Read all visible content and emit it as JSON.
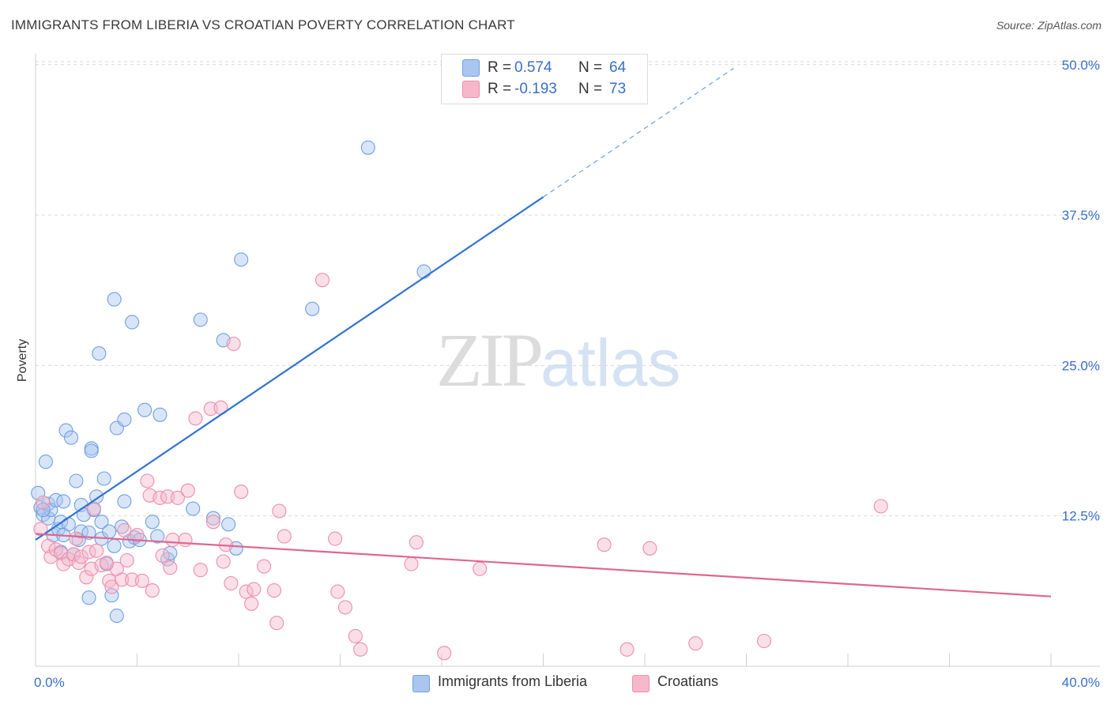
{
  "title": "IMMIGRANTS FROM LIBERIA VS CROATIAN POVERTY CORRELATION CHART",
  "source": "Source: ZipAtlas.com",
  "watermark": {
    "zip": "ZIP",
    "atlas": "atlas"
  },
  "stats": [
    {
      "r_label": "R =",
      "r_value": "0.574",
      "n_label": "N =",
      "n_value": "64",
      "color": "#a9c6f0"
    },
    {
      "r_label": "R =",
      "r_value": "-0.193",
      "n_label": "N =",
      "n_value": "73",
      "color": "#f5b8cb"
    }
  ],
  "legend": [
    {
      "label": "Immigrants from Liberia",
      "color": "#a9c6f0"
    },
    {
      "label": "Croatians",
      "color": "#f5b8cb"
    }
  ],
  "chart_data": {
    "type": "scatter",
    "title": "IMMIGRANTS FROM LIBERIA VS CROATIAN POVERTY CORRELATION CHART",
    "xlabel": "",
    "ylabel": "Poverty",
    "xlim": [
      0,
      40
    ],
    "ylim": [
      0,
      52
    ],
    "x_tick_labels": [
      "0.0%",
      "40.0%"
    ],
    "y_ticks": [
      12.5,
      25.0,
      37.5,
      50.0
    ],
    "y_tick_labels": [
      "12.5%",
      "25.0%",
      "37.5%",
      "50.0%"
    ],
    "grid": true,
    "legend_position": "bottom",
    "series": [
      {
        "name": "Immigrants from Liberia",
        "color": "#6fa0e0",
        "fill": "#a9c6f0",
        "trend_color": "#2f73d0",
        "trend": {
          "x0": 0,
          "y0": 10.5,
          "x1": 20,
          "y1": 39.0,
          "dash_to_x": 27.5,
          "dash_to_y": 49.7
        },
        "points": [
          [
            0.1,
            14.4
          ],
          [
            0.2,
            13.2
          ],
          [
            0.3,
            12.6
          ],
          [
            0.4,
            17.0
          ],
          [
            0.5,
            13.5
          ],
          [
            0.5,
            12.3
          ],
          [
            0.6,
            13.0
          ],
          [
            0.7,
            10.9
          ],
          [
            0.8,
            13.8
          ],
          [
            0.9,
            11.4
          ],
          [
            1.0,
            9.5
          ],
          [
            1.0,
            12.0
          ],
          [
            1.1,
            13.7
          ],
          [
            1.2,
            19.6
          ],
          [
            1.3,
            11.8
          ],
          [
            1.4,
            19.0
          ],
          [
            1.5,
            9.3
          ],
          [
            1.6,
            15.4
          ],
          [
            1.7,
            10.5
          ],
          [
            1.8,
            13.4
          ],
          [
            1.8,
            11.2
          ],
          [
            1.9,
            12.6
          ],
          [
            2.1,
            11.1
          ],
          [
            2.1,
            5.7
          ],
          [
            2.2,
            18.1
          ],
          [
            2.2,
            17.9
          ],
          [
            2.3,
            13.0
          ],
          [
            2.4,
            14.1
          ],
          [
            2.5,
            26.0
          ],
          [
            2.6,
            12.0
          ],
          [
            2.6,
            10.6
          ],
          [
            2.7,
            15.6
          ],
          [
            2.8,
            8.5
          ],
          [
            2.9,
            11.2
          ],
          [
            3.0,
            5.9
          ],
          [
            3.1,
            10.0
          ],
          [
            3.1,
            30.5
          ],
          [
            3.2,
            4.2
          ],
          [
            3.2,
            19.8
          ],
          [
            3.4,
            11.6
          ],
          [
            3.5,
            20.5
          ],
          [
            3.5,
            13.7
          ],
          [
            3.7,
            10.4
          ],
          [
            3.8,
            28.6
          ],
          [
            3.9,
            10.7
          ],
          [
            4.1,
            10.5
          ],
          [
            4.3,
            21.3
          ],
          [
            4.6,
            12.0
          ],
          [
            4.8,
            10.8
          ],
          [
            4.9,
            20.9
          ],
          [
            5.2,
            8.9
          ],
          [
            5.3,
            9.4
          ],
          [
            6.2,
            13.1
          ],
          [
            6.5,
            28.8
          ],
          [
            7.0,
            12.3
          ],
          [
            7.4,
            27.1
          ],
          [
            7.6,
            11.8
          ],
          [
            7.9,
            9.8
          ],
          [
            8.1,
            33.8
          ],
          [
            10.9,
            29.7
          ],
          [
            13.1,
            43.1
          ],
          [
            15.3,
            32.8
          ],
          [
            0.3,
            13.0
          ],
          [
            1.1,
            10.9
          ]
        ]
      },
      {
        "name": "Croatians",
        "color": "#ee8eac",
        "fill": "#f5b8cb",
        "trend_color": "#e0668e",
        "trend": {
          "x0": 0,
          "y0": 11.0,
          "x1": 40,
          "y1": 5.8
        },
        "points": [
          [
            0.2,
            11.4
          ],
          [
            0.3,
            13.6
          ],
          [
            0.5,
            10.0
          ],
          [
            0.6,
            9.1
          ],
          [
            0.8,
            9.7
          ],
          [
            1.0,
            9.4
          ],
          [
            1.1,
            8.5
          ],
          [
            1.3,
            8.9
          ],
          [
            1.5,
            9.3
          ],
          [
            1.6,
            10.6
          ],
          [
            1.7,
            8.6
          ],
          [
            1.8,
            9.1
          ],
          [
            2.0,
            7.4
          ],
          [
            2.1,
            9.5
          ],
          [
            2.2,
            8.1
          ],
          [
            2.3,
            13.1
          ],
          [
            2.4,
            9.6
          ],
          [
            2.6,
            8.4
          ],
          [
            2.8,
            8.6
          ],
          [
            2.9,
            7.1
          ],
          [
            3.0,
            6.6
          ],
          [
            3.2,
            8.1
          ],
          [
            3.4,
            7.2
          ],
          [
            3.5,
            11.3
          ],
          [
            3.6,
            8.8
          ],
          [
            3.8,
            7.2
          ],
          [
            4.0,
            10.9
          ],
          [
            4.2,
            7.1
          ],
          [
            4.4,
            15.4
          ],
          [
            4.5,
            14.2
          ],
          [
            4.6,
            6.3
          ],
          [
            4.9,
            14.0
          ],
          [
            5.0,
            9.2
          ],
          [
            5.2,
            14.1
          ],
          [
            5.3,
            8.2
          ],
          [
            5.4,
            10.5
          ],
          [
            5.6,
            14.0
          ],
          [
            5.9,
            10.5
          ],
          [
            6.0,
            14.6
          ],
          [
            6.3,
            20.6
          ],
          [
            6.5,
            8.0
          ],
          [
            6.9,
            21.4
          ],
          [
            7.0,
            12.0
          ],
          [
            7.3,
            21.5
          ],
          [
            7.4,
            8.7
          ],
          [
            7.5,
            10.1
          ],
          [
            7.7,
            6.9
          ],
          [
            7.8,
            26.8
          ],
          [
            8.1,
            14.5
          ],
          [
            8.3,
            6.2
          ],
          [
            8.5,
            5.2
          ],
          [
            8.6,
            6.4
          ],
          [
            9.0,
            8.3
          ],
          [
            9.4,
            6.3
          ],
          [
            9.5,
            3.6
          ],
          [
            9.6,
            12.9
          ],
          [
            9.8,
            10.8
          ],
          [
            11.3,
            32.1
          ],
          [
            11.8,
            10.6
          ],
          [
            11.9,
            6.2
          ],
          [
            12.2,
            4.9
          ],
          [
            12.6,
            2.5
          ],
          [
            12.8,
            1.4
          ],
          [
            14.8,
            8.5
          ],
          [
            15.0,
            10.3
          ],
          [
            16.1,
            1.1
          ],
          [
            17.5,
            8.1
          ],
          [
            22.4,
            10.1
          ],
          [
            23.3,
            1.4
          ],
          [
            24.2,
            9.8
          ],
          [
            26.0,
            1.9
          ],
          [
            28.7,
            2.1
          ],
          [
            33.3,
            13.3
          ]
        ]
      }
    ]
  }
}
